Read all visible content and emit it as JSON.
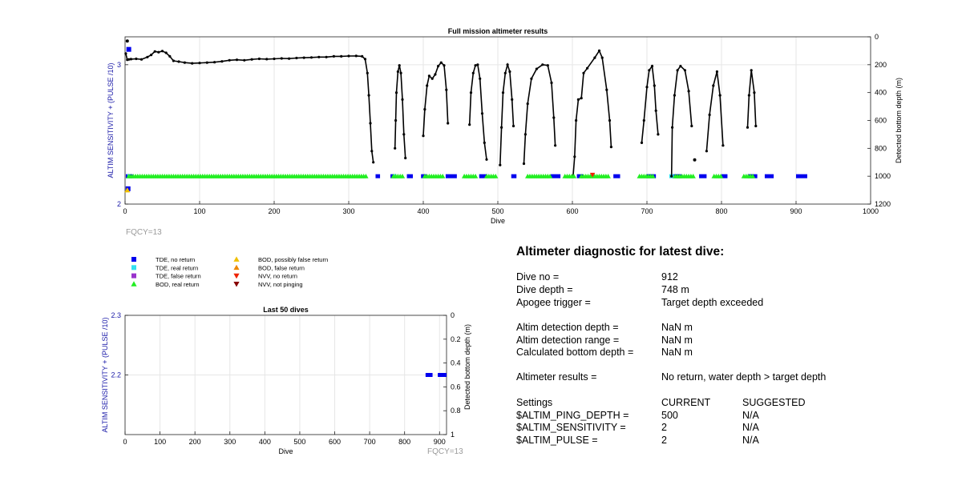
{
  "colors": {
    "tde_no_return": "#0000ee",
    "tde_real_return": "#33e0f0",
    "tde_false_return": "#9933cc",
    "bod_real_return": "#22ee22",
    "bod_possibly_false_return": "#f0c000",
    "bod_false_return": "#ee8800",
    "nvv_no_return": "#ee2200",
    "nvv_not_pinging": "#880000",
    "depth_line": "#000000",
    "left_axis_label": "#1a1aa8",
    "fqcy": "#9a9a9a",
    "grid": "#e6e6e6"
  },
  "fqcy_label": "FQCY=13",
  "legend": [
    {
      "label": "TDE, no return",
      "marker": "square",
      "color_key": "tde_no_return"
    },
    {
      "label": "TDE, real return",
      "marker": "square",
      "color_key": "tde_real_return"
    },
    {
      "label": "TDE, false return",
      "marker": "square",
      "color_key": "tde_false_return"
    },
    {
      "label": "BOD, real return",
      "marker": "triangle-up",
      "color_key": "bod_real_return"
    },
    {
      "label": "BOD, possibly false return",
      "marker": "triangle-up",
      "color_key": "bod_possibly_false_return"
    },
    {
      "label": "BOD, false return",
      "marker": "triangle-up",
      "color_key": "bod_false_return"
    },
    {
      "label": "NVV, no return",
      "marker": "triangle-down",
      "color_key": "nvv_no_return"
    },
    {
      "label": "NVV, not pinging",
      "marker": "triangle-down",
      "color_key": "nvv_not_pinging"
    }
  ],
  "chart_data": [
    {
      "type": "scatter",
      "title": "Full mission altimeter results",
      "xlabel": "Dive",
      "ylabel_left": "ALTIM SENSITIVITY + (PULSE /10)",
      "ylabel_right": "Detected bottom depth (m)",
      "xlim": [
        0,
        1000
      ],
      "xticks": [
        0,
        100,
        200,
        300,
        400,
        500,
        600,
        700,
        800,
        900,
        1000
      ],
      "ylim_left": [
        2,
        3.2
      ],
      "yticks_left": [
        2,
        3
      ],
      "ylim_right": [
        0,
        1200
      ],
      "right_reversed": true,
      "yticks_right": [
        0,
        200,
        400,
        600,
        800,
        1000,
        1200
      ],
      "grid": true,
      "depth_series": [
        [
          1,
          120
        ],
        [
          3,
          165
        ],
        [
          5,
          162
        ],
        [
          8,
          160
        ],
        [
          15,
          158
        ],
        [
          22,
          162
        ],
        [
          30,
          145
        ],
        [
          35,
          130
        ],
        [
          40,
          105
        ],
        [
          45,
          110
        ],
        [
          50,
          102
        ],
        [
          55,
          115
        ],
        [
          60,
          140
        ],
        [
          65,
          172
        ],
        [
          72,
          178
        ],
        [
          80,
          185
        ],
        [
          90,
          190
        ],
        [
          100,
          188
        ],
        [
          110,
          185
        ],
        [
          120,
          182
        ],
        [
          130,
          176
        ],
        [
          140,
          168
        ],
        [
          150,
          165
        ],
        [
          160,
          168
        ],
        [
          170,
          162
        ],
        [
          180,
          158
        ],
        [
          190,
          160
        ],
        [
          200,
          158
        ],
        [
          210,
          155
        ],
        [
          220,
          156
        ],
        [
          230,
          152
        ],
        [
          240,
          150
        ],
        [
          250,
          148
        ],
        [
          260,
          145
        ],
        [
          270,
          145
        ],
        [
          280,
          140
        ],
        [
          290,
          140
        ],
        [
          300,
          138
        ],
        [
          310,
          137
        ],
        [
          318,
          140
        ],
        [
          322,
          160
        ],
        [
          325,
          260
        ],
        [
          327,
          420
        ],
        [
          329,
          620
        ],
        [
          331,
          820
        ],
        [
          333,
          900
        ],
        [
          362,
          800
        ],
        [
          363,
          600
        ],
        [
          364,
          400
        ],
        [
          366,
          250
        ],
        [
          368,
          205
        ],
        [
          370,
          260
        ],
        [
          372,
          450
        ],
        [
          374,
          700
        ],
        [
          376,
          870
        ],
        [
          400,
          710
        ],
        [
          402,
          520
        ],
        [
          405,
          350
        ],
        [
          408,
          280
        ],
        [
          412,
          300
        ],
        [
          416,
          270
        ],
        [
          420,
          210
        ],
        [
          424,
          185
        ],
        [
          428,
          205
        ],
        [
          431,
          380
        ],
        [
          433,
          620
        ],
        [
          462,
          630
        ],
        [
          464,
          400
        ],
        [
          467,
          260
        ],
        [
          470,
          205
        ],
        [
          473,
          200
        ],
        [
          476,
          300
        ],
        [
          479,
          550
        ],
        [
          482,
          760
        ],
        [
          485,
          880
        ],
        [
          503,
          920
        ],
        [
          505,
          650
        ],
        [
          507,
          400
        ],
        [
          510,
          260
        ],
        [
          513,
          200
        ],
        [
          516,
          250
        ],
        [
          519,
          450
        ],
        [
          521,
          640
        ],
        [
          535,
          910
        ],
        [
          537,
          700
        ],
        [
          540,
          480
        ],
        [
          545,
          300
        ],
        [
          552,
          230
        ],
        [
          560,
          200
        ],
        [
          567,
          205
        ],
        [
          572,
          330
        ],
        [
          575,
          580
        ],
        [
          577,
          780
        ],
        [
          601,
          1000
        ],
        [
          603,
          860
        ],
        [
          605,
          600
        ],
        [
          608,
          450
        ],
        [
          612,
          440
        ],
        [
          615,
          260
        ],
        [
          620,
          225
        ],
        [
          630,
          150
        ],
        [
          636,
          100
        ],
        [
          640,
          150
        ],
        [
          646,
          380
        ],
        [
          650,
          600
        ],
        [
          652,
          790
        ],
        [
          693,
          760
        ],
        [
          696,
          600
        ],
        [
          700,
          360
        ],
        [
          703,
          240
        ],
        [
          707,
          210
        ],
        [
          710,
          350
        ],
        [
          712,
          530
        ],
        [
          715,
          700
        ],
        [
          733,
          1000
        ],
        [
          734,
          650
        ],
        [
          737,
          420
        ],
        [
          741,
          240
        ],
        [
          745,
          210
        ],
        [
          751,
          240
        ],
        [
          756,
          390
        ],
        [
          760,
          640
        ],
        [
          780,
          820
        ],
        [
          784,
          560
        ],
        [
          789,
          350
        ],
        [
          794,
          250
        ],
        [
          798,
          420
        ],
        [
          802,
          780
        ],
        [
          835,
          650
        ],
        [
          837,
          420
        ],
        [
          840,
          240
        ],
        [
          844,
          400
        ],
        [
          846,
          640
        ]
      ],
      "depth_outliers": [
        [
          3,
          30
        ],
        [
          764,
          883
        ],
        [
          627,
          1000
        ]
      ],
      "tde_no_return_ranges": [
        [
          1,
          10
        ],
        [
          336,
          342
        ],
        [
          356,
          364
        ],
        [
          378,
          386
        ],
        [
          397,
          404
        ],
        [
          430,
          445
        ],
        [
          475,
          486
        ],
        [
          518,
          525
        ],
        [
          571,
          584
        ],
        [
          606,
          614
        ],
        [
          655,
          664
        ],
        [
          700,
          712
        ],
        [
          734,
          746
        ],
        [
          770,
          780
        ],
        [
          800,
          808
        ],
        [
          835,
          848
        ],
        [
          858,
          870
        ],
        [
          900,
          915
        ]
      ],
      "tde_no_return_pulse_points": [
        [
          2.2,
          5,
          3.11
        ],
        [
          2.2,
          4,
          2.11
        ]
      ],
      "bod_real_return_ranges": [
        [
          5,
          325
        ],
        [
          360,
          372
        ],
        [
          402,
          428
        ],
        [
          455,
          472
        ],
        [
          485,
          498
        ],
        [
          540,
          572
        ],
        [
          590,
          602
        ],
        [
          612,
          648
        ],
        [
          690,
          710
        ],
        [
          738,
          762
        ],
        [
          790,
          800
        ],
        [
          830,
          842
        ]
      ],
      "tde_real_return_ranges": [
        [
          3,
          6
        ],
        [
          360,
          364
        ],
        [
          730,
          736
        ]
      ],
      "bod_possibly_false_return_points": [
        [
          3,
          2.1
        ]
      ],
      "nvv_no_return_points": [
        [
          627,
          2.21
        ]
      ]
    },
    {
      "type": "scatter",
      "title": "Last 50 dives",
      "xlabel": "Dive",
      "ylabel_left": "ALTIM SENSITIVITY + (PULSE /10)",
      "ylabel_right": "Detected bottom depth (m)",
      "xlim": [
        0,
        920
      ],
      "xticks": [
        0,
        100,
        200,
        300,
        400,
        500,
        600,
        700,
        800,
        900
      ],
      "ylim_left": [
        2.1,
        2.3
      ],
      "yticks_left": [
        2.2,
        2.3
      ],
      "ylim_right": [
        0,
        1
      ],
      "right_reversed": true,
      "yticks_right": [
        0,
        0.2,
        0.4,
        0.6,
        0.8,
        1
      ],
      "grid": true,
      "tde_no_return_ranges": [
        [
          860,
          880
        ],
        [
          895,
          920
        ]
      ],
      "tde_level": 2.2
    }
  ],
  "diagnostic": {
    "title": "Altimeter diagnostic for latest dive:",
    "rows": [
      {
        "label": "Dive no =",
        "value": "912"
      },
      {
        "label": "Dive depth =",
        "value": "748 m"
      },
      {
        "label": "Apogee trigger =",
        "value": "Target depth exceeded"
      },
      {
        "label": "Altim detection depth =",
        "value": "NaN m"
      },
      {
        "label": "Altim detection range =",
        "value": "NaN m"
      },
      {
        "label": "Calculated bottom depth =",
        "value": "NaN m"
      },
      {
        "label": "Altimeter results =",
        "value": "No return, water depth > target depth"
      }
    ],
    "settings_header": {
      "label": "Settings",
      "current": "CURRENT",
      "suggested": "SUGGESTED"
    },
    "settings": [
      {
        "label": "$ALTIM_PING_DEPTH =",
        "current": "500",
        "suggested": "N/A"
      },
      {
        "label": "$ALTIM_SENSITIVITY =",
        "current": "2",
        "suggested": "N/A"
      },
      {
        "label": "$ALTIM_PULSE =",
        "current": "2",
        "suggested": "N/A"
      }
    ]
  }
}
